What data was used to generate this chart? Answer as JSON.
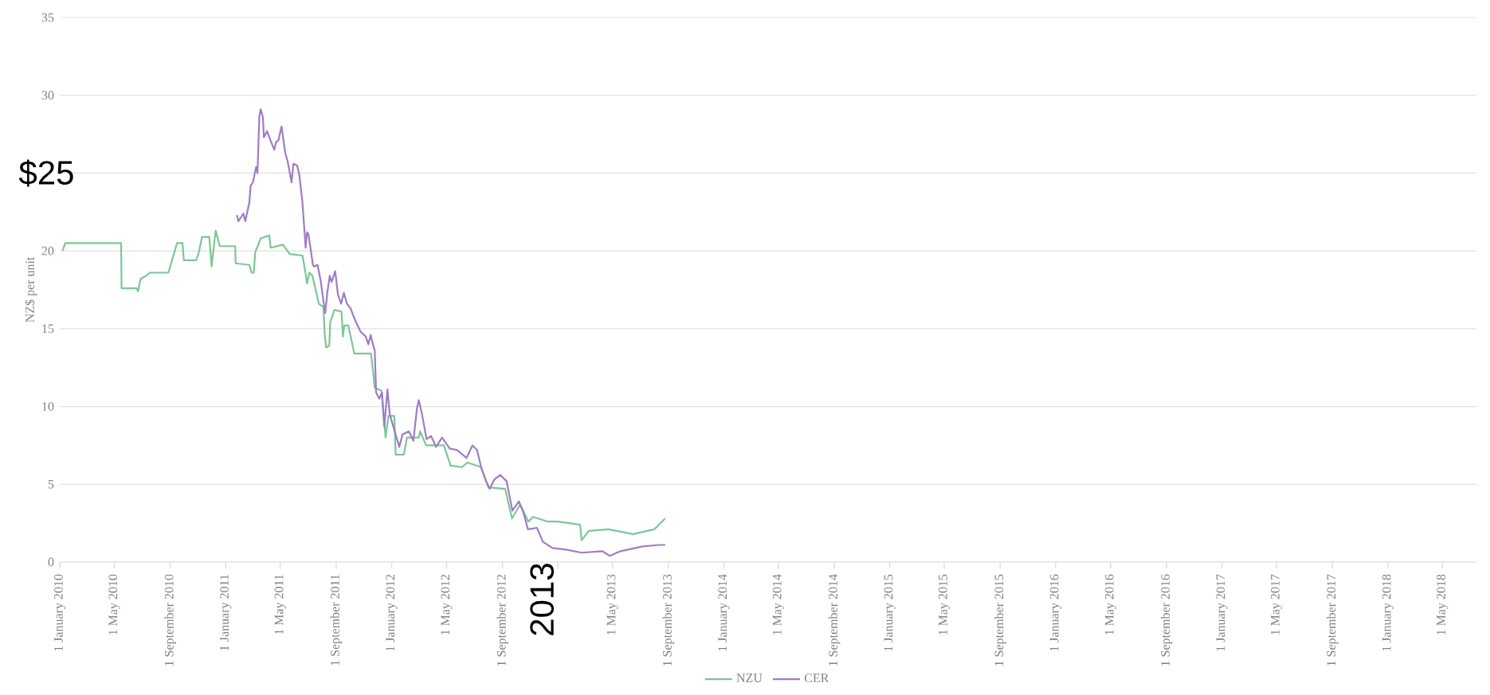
{
  "chart_data": {
    "type": "line",
    "ylabel": "NZ$ per unit",
    "annotations": [
      "$25",
      "2013"
    ],
    "xlim": [
      "2010-01-01",
      "2018-07-15"
    ],
    "xticks": [
      {
        "value": "2010-01-01",
        "label": "1 January 2010"
      },
      {
        "value": "2010-05-01",
        "label": "1 May 2010"
      },
      {
        "value": "2010-09-01",
        "label": "1 September 2010"
      },
      {
        "value": "2011-01-01",
        "label": "1 January 2011"
      },
      {
        "value": "2011-05-01",
        "label": "1 May 2011"
      },
      {
        "value": "2011-09-01",
        "label": "1 September 2011"
      },
      {
        "value": "2012-01-01",
        "label": "1 January 2012"
      },
      {
        "value": "2012-05-01",
        "label": "1 May 2012"
      },
      {
        "value": "2012-09-01",
        "label": "1 September 2012"
      },
      {
        "value": "2013-01-01",
        "label": null
      },
      {
        "value": "2013-05-01",
        "label": "1 May 2013"
      },
      {
        "value": "2013-09-01",
        "label": "1 September 2013"
      },
      {
        "value": "2014-01-01",
        "label": "1 January 2014"
      },
      {
        "value": "2014-05-01",
        "label": "1 May 2014"
      },
      {
        "value": "2014-09-01",
        "label": "1 September 2014"
      },
      {
        "value": "2015-01-01",
        "label": "1 January 2015"
      },
      {
        "value": "2015-05-01",
        "label": "1 May 2015"
      },
      {
        "value": "2015-09-01",
        "label": "1 September 2015"
      },
      {
        "value": "2016-01-01",
        "label": "1 January 2016"
      },
      {
        "value": "2016-05-01",
        "label": "1 May 2016"
      },
      {
        "value": "2016-09-01",
        "label": "1 September 2016"
      },
      {
        "value": "2017-01-01",
        "label": "1 January 2017"
      },
      {
        "value": "2017-05-01",
        "label": "1 May 2017"
      },
      {
        "value": "2017-09-01",
        "label": "1 September 2017"
      },
      {
        "value": "2018-01-01",
        "label": "1 January 2018"
      },
      {
        "value": "2018-05-01",
        "label": "1 May 2018"
      }
    ],
    "ylim": [
      0,
      35
    ],
    "yticks": [
      0,
      5,
      10,
      15,
      20,
      {
        "value": 25,
        "label": null
      },
      30,
      35
    ],
    "grid": "y",
    "legend": "bottom",
    "marker": "none",
    "line_style": "solid",
    "series": [
      {
        "name": "NZU",
        "color": "#7cc795",
        "x": [
          "2010-01-07",
          "2010-01-13",
          "2010-05-16",
          "2010-05-17",
          "2010-06-19",
          "2010-06-22",
          "2010-06-28",
          "2010-07-10",
          "2010-07-19",
          "2010-08-28",
          "2010-09-01",
          "2010-09-16",
          "2010-09-28",
          "2010-10-01",
          "2010-10-28",
          "2010-11-03",
          "2010-11-10",
          "2010-11-26",
          "2010-12-01",
          "2010-12-10",
          "2010-12-19",
          "2011-01-22",
          "2011-01-23",
          "2011-02-22",
          "2011-02-27",
          "2011-03-04",
          "2011-03-07",
          "2011-03-19",
          "2011-04-07",
          "2011-04-10",
          "2011-05-07",
          "2011-05-22",
          "2011-06-19",
          "2011-06-25",
          "2011-06-29",
          "2011-07-04",
          "2011-07-11",
          "2011-07-25",
          "2011-08-04",
          "2011-08-07",
          "2011-08-10",
          "2011-08-17",
          "2011-08-19",
          "2011-08-28",
          "2011-09-13",
          "2011-09-16",
          "2011-09-19",
          "2011-09-28",
          "2011-10-11",
          "2011-11-17",
          "2011-11-25",
          "2011-12-10",
          "2011-12-19",
          "2011-12-25",
          "2012-01-07",
          "2012-01-10",
          "2012-01-28",
          "2012-02-04",
          "2012-03-01",
          "2012-03-04",
          "2012-03-17",
          "2012-04-25",
          "2012-05-10",
          "2012-06-04",
          "2012-06-16",
          "2012-07-16",
          "2012-08-01",
          "2012-09-07",
          "2012-09-22",
          "2012-10-10",
          "2012-10-28",
          "2012-11-07",
          "2012-12-10",
          "2013-01-01",
          "2013-02-19",
          "2013-02-22",
          "2013-03-10",
          "2013-04-22",
          "2013-06-16",
          "2013-08-01",
          "2013-08-25"
        ],
        "values": [
          20.0,
          20.5,
          20.5,
          17.6,
          17.6,
          17.4,
          18.2,
          18.4,
          18.6,
          18.6,
          19.0,
          20.5,
          20.5,
          19.4,
          19.4,
          19.9,
          20.9,
          20.9,
          19.0,
          21.3,
          20.3,
          20.3,
          19.2,
          19.1,
          18.6,
          18.6,
          19.9,
          20.8,
          21.0,
          20.2,
          20.4,
          19.8,
          19.7,
          18.7,
          17.9,
          18.6,
          18.4,
          16.6,
          16.4,
          14.6,
          13.8,
          13.9,
          15.4,
          16.2,
          16.1,
          14.5,
          15.2,
          15.2,
          13.4,
          13.4,
          11.2,
          11.0,
          8.0,
          9.4,
          9.4,
          6.9,
          6.9,
          8.0,
          8.0,
          8.4,
          7.5,
          7.5,
          6.2,
          6.1,
          6.4,
          6.1,
          4.8,
          4.7,
          2.8,
          3.7,
          2.6,
          2.9,
          2.6,
          2.6,
          2.4,
          1.4,
          2.0,
          2.1,
          1.8,
          2.1,
          2.8
        ]
      },
      {
        "name": "CER",
        "color": "#a07cc5",
        "x": [
          "2011-01-26",
          "2011-01-29",
          "2011-02-09",
          "2011-02-13",
          "2011-02-22",
          "2011-02-25",
          "2011-03-02",
          "2011-03-09",
          "2011-03-12",
          "2011-03-16",
          "2011-03-19",
          "2011-03-24",
          "2011-03-26",
          "2011-04-02",
          "2011-04-11",
          "2011-04-18",
          "2011-04-22",
          "2011-04-27",
          "2011-05-04",
          "2011-05-12",
          "2011-05-17",
          "2011-05-21",
          "2011-05-26",
          "2011-05-30",
          "2011-06-07",
          "2011-06-12",
          "2011-06-19",
          "2011-06-26",
          "2011-06-29",
          "2011-07-02",
          "2011-07-12",
          "2011-07-15",
          "2011-07-22",
          "2011-07-29",
          "2011-08-05",
          "2011-08-08",
          "2011-08-13",
          "2011-08-18",
          "2011-08-22",
          "2011-08-30",
          "2011-09-05",
          "2011-09-12",
          "2011-09-18",
          "2011-09-25",
          "2011-10-03",
          "2011-10-08",
          "2011-10-15",
          "2011-10-25",
          "2011-11-05",
          "2011-11-11",
          "2011-11-16",
          "2011-11-21",
          "2011-11-25",
          "2011-11-28",
          "2011-12-05",
          "2011-12-11",
          "2011-12-16",
          "2011-12-23",
          "2011-12-28",
          "2012-01-08",
          "2012-01-18",
          "2012-01-25",
          "2012-02-08",
          "2012-02-18",
          "2012-02-26",
          "2012-03-01",
          "2012-03-08",
          "2012-03-18",
          "2012-03-28",
          "2012-04-08",
          "2012-04-21",
          "2012-05-08",
          "2012-05-24",
          "2012-06-14",
          "2012-06-27",
          "2012-07-07",
          "2012-07-17",
          "2012-07-27",
          "2012-08-04",
          "2012-08-14",
          "2012-08-27",
          "2012-09-10",
          "2012-09-23",
          "2012-10-07",
          "2012-10-17",
          "2012-10-27",
          "2012-11-16",
          "2012-11-29",
          "2012-12-20",
          "2013-01-19",
          "2013-02-22",
          "2013-04-09",
          "2013-04-25",
          "2013-05-19",
          "2013-07-06",
          "2013-08-12",
          "2013-08-25"
        ],
        "values": [
          22.3,
          21.9,
          22.4,
          21.9,
          23.1,
          24.2,
          24.4,
          25.4,
          25.0,
          28.6,
          29.1,
          28.6,
          27.3,
          27.7,
          27.0,
          26.5,
          27.0,
          27.1,
          28.0,
          26.3,
          25.8,
          25.2,
          24.4,
          25.6,
          25.5,
          24.9,
          23.1,
          20.2,
          21.2,
          21.1,
          19.1,
          19.0,
          19.1,
          18.1,
          16.6,
          16.0,
          17.4,
          18.4,
          18.0,
          18.7,
          17.2,
          16.6,
          17.3,
          16.6,
          16.3,
          15.9,
          15.4,
          14.8,
          14.5,
          14.0,
          14.6,
          14.0,
          13.6,
          10.9,
          10.5,
          10.9,
          8.7,
          11.1,
          9.5,
          8.4,
          7.4,
          8.2,
          8.4,
          7.8,
          9.9,
          10.4,
          9.5,
          7.9,
          8.1,
          7.4,
          8.0,
          7.3,
          7.2,
          6.7,
          7.5,
          7.2,
          6.0,
          5.2,
          4.7,
          5.3,
          5.6,
          5.2,
          3.3,
          3.9,
          3.2,
          2.1,
          2.2,
          1.3,
          0.9,
          0.8,
          0.6,
          0.7,
          0.4,
          0.7,
          1.0,
          1.1,
          1.1
        ]
      }
    ]
  }
}
